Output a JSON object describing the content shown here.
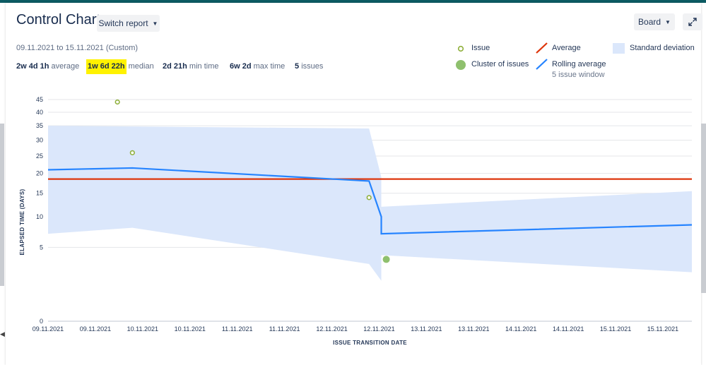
{
  "header": {
    "title": "Control Chart",
    "switch_report_label": "Switch report",
    "board_label": "Board"
  },
  "date_range": "09.11.2021 to 15.11.2021 (Custom)",
  "stats": [
    {
      "value": "2w 4d 1h",
      "label": "average",
      "highlighted": false
    },
    {
      "value": "1w 6d 22h",
      "label": "median",
      "highlighted": true
    },
    {
      "value": "2d 21h",
      "label": "min time",
      "highlighted": false
    },
    {
      "value": "6w 2d",
      "label": "max time",
      "highlighted": false
    },
    {
      "value": "5",
      "label": "issues",
      "highlighted": false
    }
  ],
  "legend": {
    "issue": "Issue",
    "cluster": "Cluster of issues",
    "average": "Average",
    "rolling": "Rolling average",
    "rolling_sub": "5 issue window",
    "stddev": "Standard deviation"
  },
  "colors": {
    "average": "#de350b",
    "rolling": "#2684ff",
    "stddev": "#dbe7fb",
    "issue": "#8fb03c",
    "cluster": "#8fc06e",
    "highlight": "#fff200"
  },
  "chart_data": {
    "type": "scatter",
    "xlabel": "ISSUE TRANSITION DATE",
    "ylabel": "ELAPSED TIME (DAYS)",
    "y_scale": "sqrt",
    "ylim": [
      0,
      50
    ],
    "y_ticks": [
      0,
      5,
      10,
      15,
      20,
      25,
      30,
      35,
      40,
      45
    ],
    "x_ticks": [
      "09.11.2021",
      "09.11.2021",
      "10.11.2021",
      "10.11.2021",
      "11.11.2021",
      "11.11.2021",
      "12.11.2021",
      "12.11.2021",
      "13.11.2021",
      "13.11.2021",
      "14.11.2021",
      "14.11.2021",
      "15.11.2021",
      "15.11.2021"
    ],
    "x_domain": [
      0,
      14.2
    ],
    "series": [
      {
        "name": "Issue",
        "kind": "scatter",
        "points": [
          [
            1.53,
            44
          ],
          [
            1.86,
            26
          ],
          [
            7.08,
            14
          ]
        ]
      },
      {
        "name": "Cluster of issues",
        "kind": "cluster",
        "points": [
          [
            7.46,
            3.5
          ]
        ]
      },
      {
        "name": "Average",
        "kind": "line",
        "points": [
          [
            0,
            18.5
          ],
          [
            14.2,
            18.5
          ]
        ]
      },
      {
        "name": "Rolling average",
        "kind": "line",
        "points": [
          [
            0,
            21
          ],
          [
            1.86,
            21.5
          ],
          [
            7.08,
            18
          ],
          [
            7.35,
            10
          ],
          [
            7.35,
            7
          ],
          [
            14.2,
            8.5
          ]
        ]
      },
      {
        "name": "Standard deviation",
        "kind": "band",
        "upper": [
          [
            0,
            35
          ],
          [
            7.08,
            34
          ],
          [
            7.35,
            19
          ],
          [
            7.35,
            12
          ],
          [
            14.2,
            15.5
          ]
        ],
        "lower": [
          [
            0,
            7
          ],
          [
            1.86,
            8
          ],
          [
            7.08,
            3
          ],
          [
            7.35,
            1.5
          ],
          [
            7.35,
            4
          ],
          [
            14.2,
            2.2
          ]
        ]
      }
    ]
  }
}
